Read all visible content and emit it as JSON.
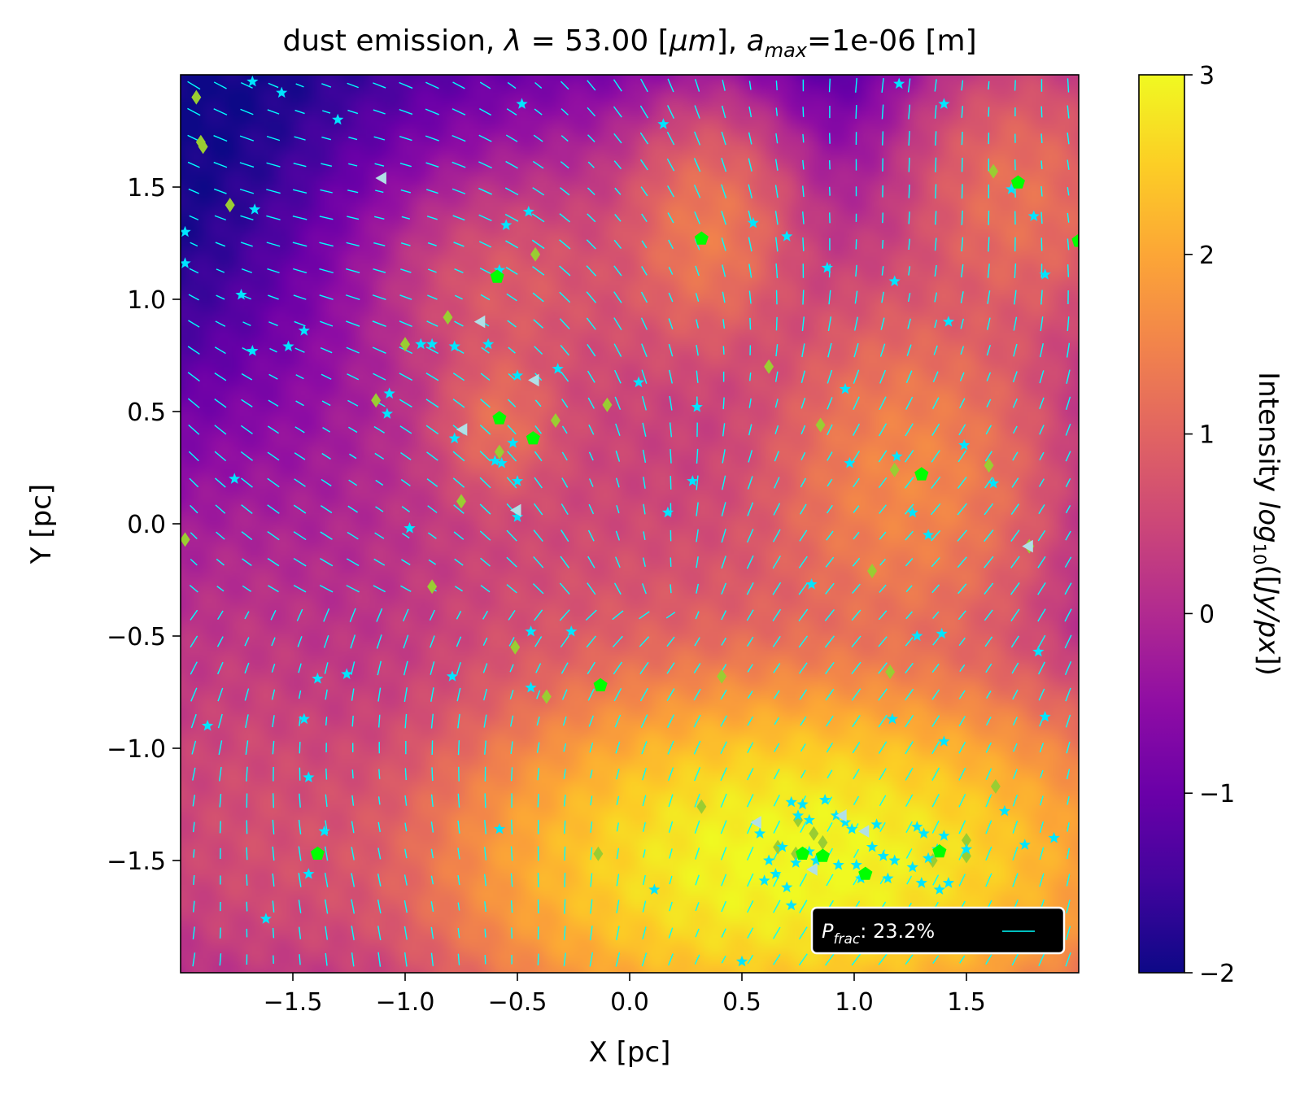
{
  "chart_data": {
    "type": "heatmap",
    "title": {
      "prefix": "dust emission, ",
      "lambda_symbol": "λ",
      "lambda_eq": " = 53.00 [",
      "lambda_unit": "μm",
      "mid": "], ",
      "amax_symbol": "a",
      "amax_sub": "max",
      "amax_rest": "=1e-06 [m]"
    },
    "xlabel": "X [pc]",
    "ylabel": "Y [pc]",
    "xlim": [
      -2.0,
      2.0
    ],
    "ylim": [
      -2.0,
      2.0
    ],
    "xticks": [
      -1.5,
      -1.0,
      -0.5,
      0.0,
      0.5,
      1.0,
      1.5
    ],
    "xtick_labels": [
      "−1.5",
      "−1.0",
      "−0.5",
      "0.0",
      "0.5",
      "1.0",
      "1.5"
    ],
    "yticks": [
      -1.5,
      -1.0,
      -0.5,
      0.0,
      0.5,
      1.0,
      1.5
    ],
    "ytick_labels": [
      "−1.5",
      "−1.0",
      "−0.5",
      "0.0",
      "0.5",
      "1.0",
      "1.5"
    ],
    "colormap": "plasma",
    "colorbar": {
      "range": [
        -2,
        3
      ],
      "ticks": [
        -2,
        -1,
        0,
        1,
        2,
        3
      ],
      "tick_labels": [
        "−2",
        "−1",
        "0",
        "1",
        "2",
        "3"
      ],
      "label_prefix": "Intensity ",
      "label_log": "log",
      "label_sub": "10",
      "label_open": "([",
      "label_unit": "Jy/px",
      "label_close": "])"
    },
    "legend": {
      "placement": "lower-right",
      "symbol": "P",
      "symbol_sub": "frac",
      "text": ":  23.2%",
      "line_color": "#00ffff"
    },
    "emission_blobs": [
      {
        "x": 0.75,
        "y": -1.5,
        "sx": 0.55,
        "sy": 0.3,
        "v": 3.0
      },
      {
        "x": 0.2,
        "y": -1.55,
        "sx": 0.5,
        "sy": 0.4,
        "v": 1.6
      },
      {
        "x": 1.2,
        "y": -1.3,
        "sx": 0.45,
        "sy": 0.35,
        "v": 1.3
      },
      {
        "x": 0.45,
        "y": -0.95,
        "sx": 0.7,
        "sy": 0.45,
        "v": 0.9
      },
      {
        "x": 1.25,
        "y": 0.2,
        "sx": 0.3,
        "sy": 0.38,
        "v": 1.5
      },
      {
        "x": 1.1,
        "y": -0.1,
        "sx": 0.4,
        "sy": 0.55,
        "v": 0.6
      },
      {
        "x": 0.35,
        "y": 1.3,
        "sx": 0.18,
        "sy": 0.25,
        "v": 1.3
      },
      {
        "x": 0.2,
        "y": 1.1,
        "sx": 0.4,
        "sy": 0.35,
        "v": 0.5
      },
      {
        "x": -0.58,
        "y": 0.45,
        "sx": 0.14,
        "sy": 0.18,
        "v": 1.1
      },
      {
        "x": -0.55,
        "y": 1.05,
        "sx": 0.25,
        "sy": 0.22,
        "v": 0.7
      },
      {
        "x": 1.75,
        "y": 1.45,
        "sx": 0.25,
        "sy": 0.3,
        "v": 1.2
      },
      {
        "x": -0.4,
        "y": 0.6,
        "sx": 0.45,
        "sy": 0.55,
        "v": 0.3
      },
      {
        "x": 0.0,
        "y": -0.4,
        "sx": 0.8,
        "sy": 0.6,
        "v": 0.4
      },
      {
        "x": -1.4,
        "y": -1.5,
        "sx": 0.5,
        "sy": 0.4,
        "v": 0.5
      },
      {
        "x": -1.8,
        "y": -1.0,
        "sx": 0.35,
        "sy": 0.6,
        "v": 0.3
      },
      {
        "x": 1.5,
        "y": 0.9,
        "sx": 0.5,
        "sy": 0.4,
        "v": 0.2
      }
    ],
    "star_color": "#00e5ff",
    "stars": [
      [
        -1.68,
        1.97
      ],
      [
        -1.55,
        1.92
      ],
      [
        -1.3,
        1.8
      ],
      [
        -0.48,
        1.87
      ],
      [
        0.15,
        1.78
      ],
      [
        1.2,
        1.96
      ],
      [
        1.4,
        1.87
      ],
      [
        -1.67,
        1.4
      ],
      [
        -1.98,
        1.3
      ],
      [
        -1.98,
        1.16
      ],
      [
        -0.45,
        1.39
      ],
      [
        -0.55,
        1.33
      ],
      [
        0.55,
        1.34
      ],
      [
        0.7,
        1.28
      ],
      [
        1.7,
        1.49
      ],
      [
        1.8,
        1.37
      ],
      [
        -1.73,
        1.02
      ],
      [
        -0.58,
        1.13
      ],
      [
        0.88,
        1.14
      ],
      [
        1.18,
        1.08
      ],
      [
        1.85,
        1.11
      ],
      [
        -1.45,
        0.86
      ],
      [
        -0.93,
        0.8
      ],
      [
        -0.88,
        0.8
      ],
      [
        -0.78,
        0.79
      ],
      [
        -0.63,
        0.8
      ],
      [
        1.42,
        0.9
      ],
      [
        -1.68,
        0.77
      ],
      [
        -1.52,
        0.79
      ],
      [
        -0.32,
        0.69
      ],
      [
        -0.5,
        0.66
      ],
      [
        0.04,
        0.63
      ],
      [
        0.3,
        0.52
      ],
      [
        0.96,
        0.6
      ],
      [
        -1.07,
        0.58
      ],
      [
        -1.08,
        0.49
      ],
      [
        -0.78,
        0.38
      ],
      [
        -0.52,
        0.36
      ],
      [
        -0.6,
        0.28
      ],
      [
        -0.57,
        0.27
      ],
      [
        0.98,
        0.27
      ],
      [
        1.19,
        0.3
      ],
      [
        1.49,
        0.35
      ],
      [
        1.62,
        0.18
      ],
      [
        -1.76,
        0.2
      ],
      [
        -0.5,
        0.19
      ],
      [
        0.28,
        0.19
      ],
      [
        0.17,
        0.05
      ],
      [
        -0.5,
        0.03
      ],
      [
        1.26,
        0.05
      ],
      [
        -0.98,
        -0.02
      ],
      [
        1.33,
        -0.05
      ],
      [
        1.28,
        -0.5
      ],
      [
        1.39,
        -0.49
      ],
      [
        1.82,
        -0.57
      ],
      [
        0.81,
        -0.27
      ],
      [
        -0.44,
        -0.48
      ],
      [
        -0.26,
        -0.48
      ],
      [
        -1.39,
        -0.69
      ],
      [
        -1.26,
        -0.67
      ],
      [
        -0.79,
        -0.68
      ],
      [
        -0.44,
        -0.73
      ],
      [
        -1.45,
        -0.87
      ],
      [
        -1.88,
        -0.9
      ],
      [
        1.17,
        -0.87
      ],
      [
        1.4,
        -0.97
      ],
      [
        1.85,
        -0.86
      ],
      [
        -1.43,
        -1.13
      ],
      [
        -1.36,
        -1.37
      ],
      [
        -0.58,
        -1.36
      ],
      [
        0.72,
        -1.24
      ],
      [
        0.77,
        -1.25
      ],
      [
        0.87,
        -1.23
      ],
      [
        0.75,
        -1.3
      ],
      [
        0.8,
        -1.32
      ],
      [
        0.92,
        -1.3
      ],
      [
        0.96,
        -1.33
      ],
      [
        0.99,
        -1.36
      ],
      [
        1.1,
        -1.34
      ],
      [
        1.28,
        -1.35
      ],
      [
        1.31,
        -1.38
      ],
      [
        1.4,
        -1.39
      ],
      [
        1.5,
        -1.45
      ],
      [
        1.67,
        -1.28
      ],
      [
        1.76,
        -1.43
      ],
      [
        1.89,
        -1.4
      ],
      [
        0.58,
        -1.38
      ],
      [
        0.68,
        -1.44
      ],
      [
        0.74,
        -1.51
      ],
      [
        0.83,
        -1.5
      ],
      [
        0.93,
        -1.52
      ],
      [
        1.01,
        -1.52
      ],
      [
        1.08,
        -1.44
      ],
      [
        1.13,
        -1.48
      ],
      [
        1.18,
        -1.5
      ],
      [
        1.26,
        -1.53
      ],
      [
        1.33,
        -1.49
      ],
      [
        1.37,
        -1.45
      ],
      [
        0.62,
        -1.5
      ],
      [
        0.65,
        -1.56
      ],
      [
        0.8,
        -1.46
      ],
      [
        1.03,
        -1.58
      ],
      [
        1.15,
        -1.58
      ],
      [
        1.3,
        -1.6
      ],
      [
        1.38,
        -1.63
      ],
      [
        1.42,
        -1.6
      ],
      [
        0.6,
        -1.59
      ],
      [
        0.7,
        -1.62
      ],
      [
        0.11,
        -1.63
      ],
      [
        0.72,
        -1.7
      ],
      [
        -1.43,
        -1.56
      ],
      [
        -1.62,
        -1.76
      ],
      [
        0.5,
        -1.95
      ]
    ],
    "diamond_color": "#9acd32",
    "diamonds": [
      [
        -1.93,
        1.9
      ],
      [
        -1.9,
        1.68
      ],
      [
        -1.91,
        1.7
      ],
      [
        -1.78,
        1.42
      ],
      [
        -0.42,
        1.2
      ],
      [
        1.62,
        1.57
      ],
      [
        -0.81,
        0.92
      ],
      [
        -1.0,
        0.8
      ],
      [
        0.62,
        0.7
      ],
      [
        -1.13,
        0.55
      ],
      [
        -0.1,
        0.53
      ],
      [
        -0.33,
        0.46
      ],
      [
        0.85,
        0.44
      ],
      [
        -0.58,
        0.32
      ],
      [
        -0.75,
        0.1
      ],
      [
        1.18,
        0.24
      ],
      [
        1.6,
        0.26
      ],
      [
        1.78,
        -0.1
      ],
      [
        -1.98,
        -0.07
      ],
      [
        -0.88,
        -0.28
      ],
      [
        1.08,
        -0.21
      ],
      [
        -0.51,
        -0.55
      ],
      [
        0.41,
        -0.68
      ],
      [
        1.16,
        -0.66
      ],
      [
        -0.37,
        -0.77
      ],
      [
        1.63,
        -1.17
      ],
      [
        0.32,
        -1.26
      ],
      [
        0.75,
        -1.32
      ],
      [
        0.82,
        -1.38
      ],
      [
        -0.14,
        -1.47
      ],
      [
        0.66,
        -1.44
      ],
      [
        0.74,
        -1.47
      ],
      [
        1.5,
        -1.41
      ],
      [
        1.5,
        -1.48
      ],
      [
        1.35,
        -1.5
      ],
      [
        0.86,
        -1.42
      ]
    ],
    "pentagon_color": "#00ff00",
    "pentagons": [
      [
        0.32,
        1.27
      ],
      [
        1.73,
        1.52
      ],
      [
        2.0,
        1.26
      ],
      [
        -0.59,
        1.1
      ],
      [
        -0.58,
        0.47
      ],
      [
        -0.43,
        0.38
      ],
      [
        1.3,
        0.22
      ],
      [
        -0.13,
        -0.72
      ],
      [
        -1.39,
        -1.47
      ],
      [
        0.77,
        -1.47
      ],
      [
        0.86,
        -1.48
      ],
      [
        1.05,
        -1.56
      ],
      [
        1.38,
        -1.46
      ]
    ],
    "triangle_color": "#b0e0e6",
    "triangles": [
      [
        -1.1,
        1.54
      ],
      [
        -0.66,
        0.9
      ],
      [
        -0.42,
        0.64
      ],
      [
        -0.74,
        0.42
      ],
      [
        -0.5,
        0.06
      ],
      [
        1.78,
        -0.1
      ],
      [
        0.57,
        -1.33
      ],
      [
        1.05,
        -1.37
      ],
      [
        0.82,
        -1.54
      ],
      [
        0.95,
        -1.3
      ]
    ]
  }
}
